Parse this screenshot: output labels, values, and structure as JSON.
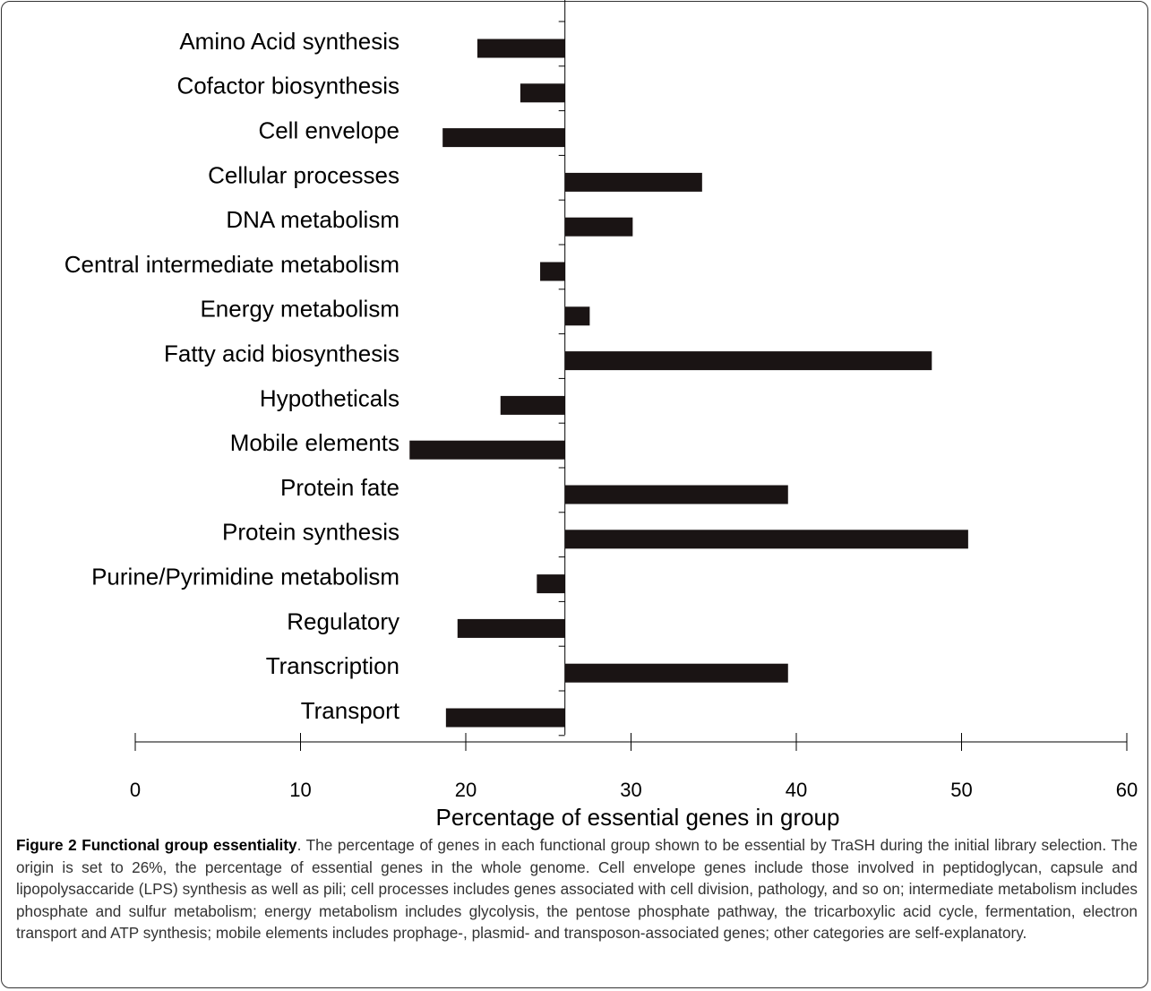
{
  "chart_data": {
    "type": "bar",
    "orientation": "horizontal",
    "categories": [
      "Amino Acid synthesis",
      "Cofactor biosynthesis",
      "Cell envelope",
      "Cellular processes",
      "DNA metabolism",
      "Central intermediate metabolism",
      "Energy metabolism",
      "Fatty acid biosynthesis",
      "Hypotheticals",
      "Mobile elements",
      "Protein fate",
      "Protein synthesis",
      "Purine/Pyrimidine metabolism",
      "Regulatory",
      "Transcription",
      "Transport"
    ],
    "values": [
      20.7,
      23.3,
      18.6,
      34.3,
      30.1,
      24.5,
      27.5,
      48.2,
      22.1,
      16.6,
      39.5,
      50.4,
      24.3,
      19.5,
      39.5,
      18.8
    ],
    "origin": 26,
    "color": "#1a1414",
    "xlim": [
      0,
      60
    ],
    "xticks": [
      0,
      10,
      20,
      30,
      40,
      50,
      60
    ],
    "xlabel": "Percentage of essential genes in group"
  },
  "caption": {
    "label": "Figure 2",
    "title": "Functional group essentiality",
    "text": ". The percentage of genes in each functional group shown to be essential by TraSH during the initial library selection. The origin is set to 26%, the percentage of essential genes in the whole genome. Cell envelope genes include those involved in peptidoglycan, capsule and lipopolysaccaride (LPS) synthesis as well as pili; cell processes includes genes associated with cell division, pathology, and so on; intermediate metabolism includes phosphate and sulfur metabolism; energy metabolism includes glycolysis, the pentose phosphate pathway, the tricarboxylic acid cycle, fermentation, electron transport and ATP synthesis; mobile elements includes prophage-, plasmid- and transposon-associated genes; other categories are self-explanatory."
  }
}
